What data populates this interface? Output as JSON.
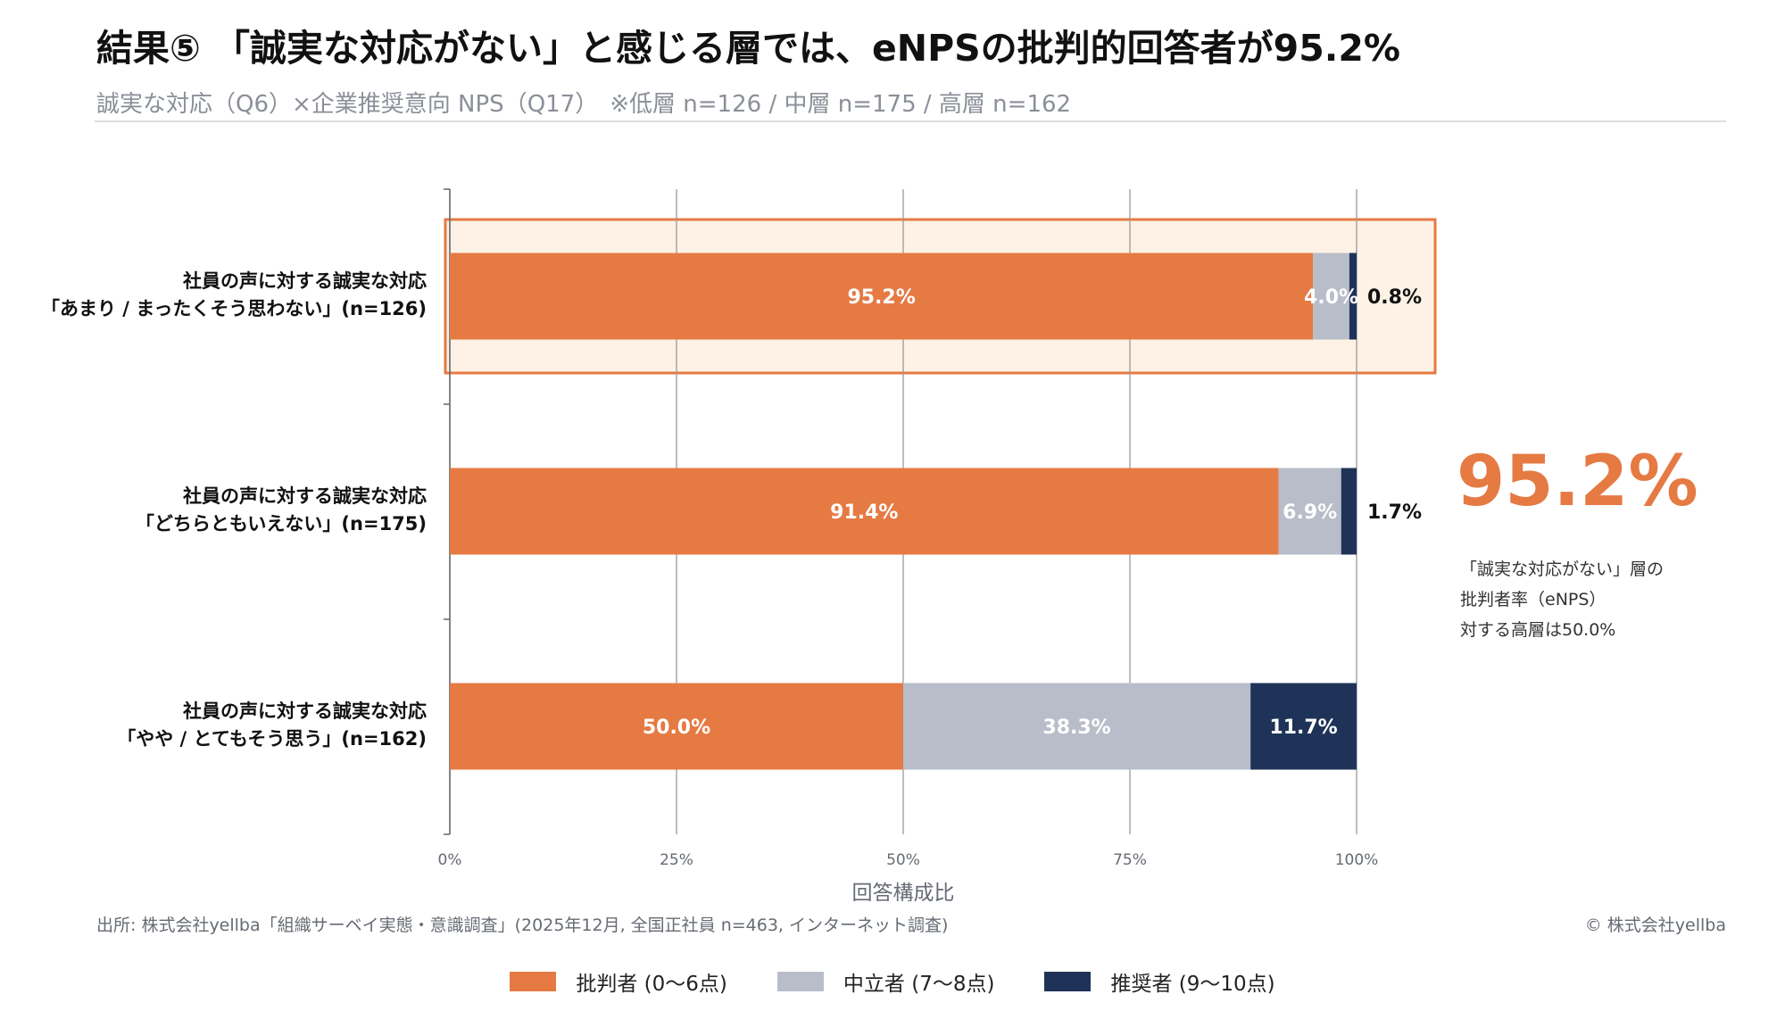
{
  "title": "結果⑤ 「誠実な対応がない」と感じる層では、eNPSの批判的回答者が95.2%",
  "subtitle": "誠実な対応（Q6）×企業推奨意向 NPS（Q17）　※低層 n=126 / 中層 n=175 / 高層 n=162",
  "source": "出所: 株式会社yellba「組織サーベイ実態・意識調査」(2025年12月, 全国正社員 n=463, インターネット調査)",
  "copyright": "© 株式会社yellba",
  "callout": {
    "value": "95.2%",
    "lines": [
      "「誠実な対応がない」層の",
      "批判者率（eNPS）",
      "対する高層は50.0%"
    ]
  },
  "colors": {
    "critic": "#e57a43",
    "neutral": "#b8bdc9",
    "promoter": "#1f3358",
    "highlight_fill": "#fdf2e5",
    "highlight_border": "#e57a43",
    "callout": "#e57a43"
  },
  "chart_data": {
    "type": "bar",
    "orientation": "horizontal",
    "stacked": true,
    "categories": [
      [
        "社員の声に対する誠実な対応",
        "「あまり / まったくそう思わない」(n=126)"
      ],
      [
        "社員の声に対する誠実な対応",
        "「どちらともいえない」(n=175)"
      ],
      [
        "社員の声に対する誠実な対応",
        "「やや / とてもそう思う」(n=162)"
      ]
    ],
    "series": [
      {
        "name": "批判者 (0〜6点)",
        "values": [
          95.2,
          91.4,
          50.0
        ],
        "color": "#e57a43"
      },
      {
        "name": "中立者 (7〜8点)",
        "values": [
          4.0,
          6.9,
          38.3
        ],
        "color": "#b8bdc9"
      },
      {
        "name": "推奨者 (9〜10点)",
        "values": [
          0.8,
          1.7,
          11.7
        ],
        "color": "#1f3358"
      }
    ],
    "xlabel": "回答構成比",
    "xlim": [
      0,
      100
    ],
    "xticks": [
      0,
      25,
      50,
      75,
      100
    ],
    "xtick_labels": [
      "0%",
      "25%",
      "50%",
      "75%",
      "100%"
    ],
    "value_suffix": "%",
    "grid": true,
    "legend": "bottom",
    "highlight_category": 0
  }
}
